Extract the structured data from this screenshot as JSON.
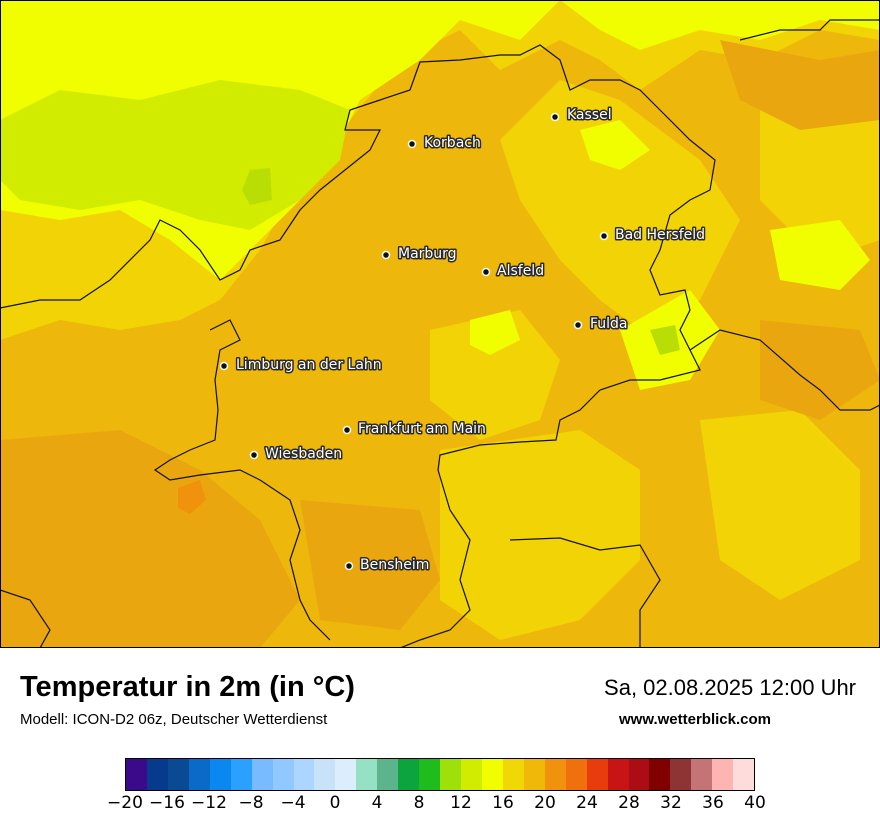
{
  "title": "Temperatur in 2m (in °C)",
  "model_line": "Modell: ICON-D2 06z, Deutscher Wetterdienst",
  "valid_time": "Sa, 02.08.2025 12:00 Uhr",
  "website": "www.wetterblick.com",
  "cities": [
    {
      "name": "Kassel"
    },
    {
      "name": "Korbach"
    },
    {
      "name": "Bad Hersfeld"
    },
    {
      "name": "Marburg"
    },
    {
      "name": "Alsfeld"
    },
    {
      "name": "Fulda"
    },
    {
      "name": "Limburg an der Lahn"
    },
    {
      "name": "Frankfurt am Main"
    },
    {
      "name": "Wiesbaden"
    },
    {
      "name": "Bensheim"
    }
  ],
  "colorbar": {
    "colors": [
      "#3a0a8a",
      "#063a8c",
      "#0a4a94",
      "#0a6ac8",
      "#0a88f0",
      "#2aa0ff",
      "#78bcff",
      "#90c8ff",
      "#acd6ff",
      "#c8e2fa",
      "#dceefc",
      "#96e0c4",
      "#5cb48c",
      "#0ca43c",
      "#20bc1e",
      "#9ee00a",
      "#d2ec00",
      "#f0fe00",
      "#f0d806",
      "#f0b808",
      "#f0920e",
      "#f0700e",
      "#e83c0c",
      "#c81414",
      "#ac0c14",
      "#800000",
      "#8e3434",
      "#c47474",
      "#ffb4b4",
      "#ffdcdc"
    ],
    "tick_labels": [
      "−20",
      "−16",
      "−12",
      "−8",
      "−4",
      "0",
      "4",
      "8",
      "12",
      "16",
      "20",
      "24",
      "28",
      "32",
      "36",
      "40"
    ]
  }
}
